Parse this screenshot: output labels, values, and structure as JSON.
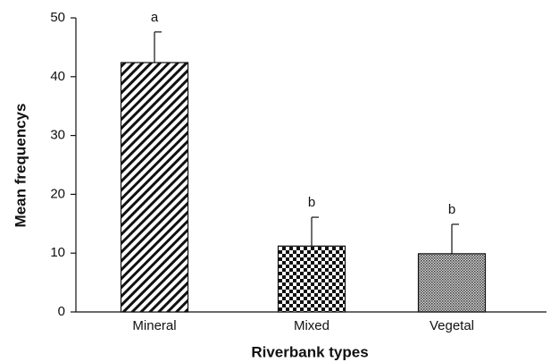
{
  "chart_data": {
    "type": "bar",
    "categories": [
      "Mineral",
      "Mixed",
      "Vegetal"
    ],
    "values": [
      42.4,
      11.2,
      9.9
    ],
    "errors": [
      5.2,
      4.9,
      5.0
    ],
    "annotations": [
      "a",
      "b",
      "b"
    ],
    "xlabel": "Riverbank types",
    "ylabel": "Mean frequencys",
    "ylim": [
      0,
      50
    ],
    "yticks": [
      0,
      10,
      20,
      30,
      40,
      50
    ],
    "grid": false
  }
}
